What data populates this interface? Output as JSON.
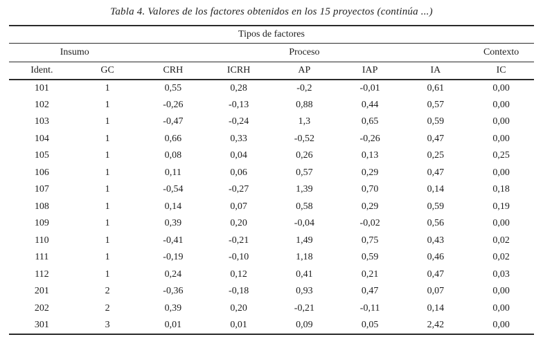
{
  "title": "Tabla 4. Valores de los factores obtenidos en los 15 proyectos (continúa ...)",
  "table": {
    "super_header": "Tipos de factores",
    "groups": [
      {
        "label": "Insumo",
        "span": 2
      },
      {
        "label": "Proceso",
        "span": 5
      },
      {
        "label": "Contexto",
        "span": 1
      }
    ],
    "columns": [
      "Ident.",
      "GC",
      "CRH",
      "ICRH",
      "AP",
      "IAP",
      "IA",
      "IC"
    ],
    "rows": [
      [
        "101",
        "1",
        "0,55",
        "0,28",
        "-0,2",
        "-0,01",
        "0,61",
        "0,00"
      ],
      [
        "102",
        "1",
        "-0,26",
        "-0,13",
        "0,88",
        "0,44",
        "0,57",
        "0,00"
      ],
      [
        "103",
        "1",
        "-0,47",
        "-0,24",
        "1,3",
        "0,65",
        "0,59",
        "0,00"
      ],
      [
        "104",
        "1",
        "0,66",
        "0,33",
        "-0,52",
        "-0,26",
        "0,47",
        "0,00"
      ],
      [
        "105",
        "1",
        "0,08",
        "0,04",
        "0,26",
        "0,13",
        "0,25",
        "0,25"
      ],
      [
        "106",
        "1",
        "0,11",
        "0,06",
        "0,57",
        "0,29",
        "0,47",
        "0,00"
      ],
      [
        "107",
        "1",
        "-0,54",
        "-0,27",
        "1,39",
        "0,70",
        "0,14",
        "0,18"
      ],
      [
        "108",
        "1",
        "0,14",
        "0,07",
        "0,58",
        "0,29",
        "0,59",
        "0,19"
      ],
      [
        "109",
        "1",
        "0,39",
        "0,20",
        "-0,04",
        "-0,02",
        "0,56",
        "0,00"
      ],
      [
        "110",
        "1",
        "-0,41",
        "-0,21",
        "1,49",
        "0,75",
        "0,43",
        "0,02"
      ],
      [
        "111",
        "1",
        "-0,19",
        "-0,10",
        "1,18",
        "0,59",
        "0,46",
        "0,02"
      ],
      [
        "112",
        "1",
        "0,24",
        "0,12",
        "0,41",
        "0,21",
        "0,47",
        "0,03"
      ],
      [
        "201",
        "2",
        "-0,36",
        "-0,18",
        "0,93",
        "0,47",
        "0,07",
        "0,00"
      ],
      [
        "202",
        "2",
        "0,39",
        "0,20",
        "-0,21",
        "-0,11",
        "0,14",
        "0,00"
      ],
      [
        "301",
        "3",
        "0,01",
        "0,01",
        "0,09",
        "0,05",
        "2,42",
        "0,00"
      ]
    ]
  },
  "colors": {
    "background": "#ffffff",
    "text": "#1d1d1d",
    "rule": "#2a2a2a"
  }
}
